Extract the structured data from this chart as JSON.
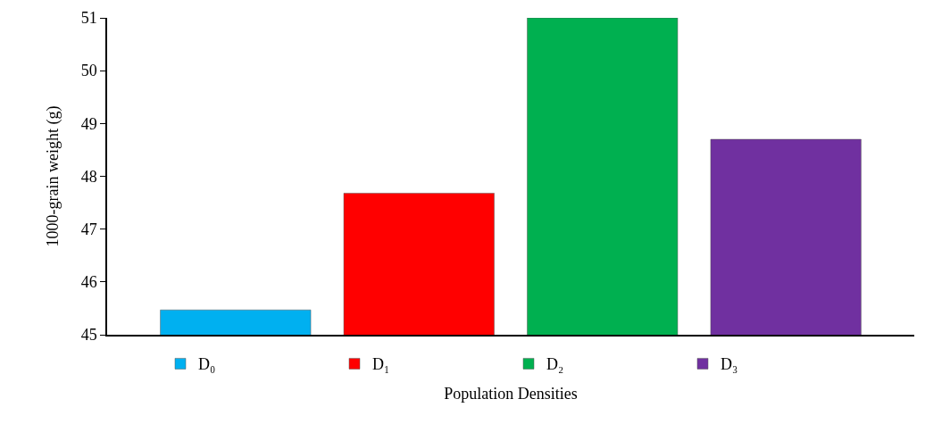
{
  "chart_data": {
    "type": "bar",
    "xlabel": "Population Densities",
    "ylabel": "1000-grain weight (g)",
    "categories": [
      null,
      null,
      null,
      null
    ],
    "series": [
      {
        "name": "D₀",
        "color": "#00b0f0",
        "values": [
          45.47,
          null,
          null,
          null
        ]
      },
      {
        "name": "D₁",
        "color": "#ff0000",
        "values": [
          null,
          47.68,
          null,
          null
        ]
      },
      {
        "name": "D₂",
        "color": "#00b050",
        "values": [
          null,
          null,
          51.0,
          null
        ]
      },
      {
        "name": "D₃",
        "color": "#7030a0",
        "values": [
          null,
          null,
          null,
          48.7
        ]
      }
    ],
    "ylim": [
      45,
      51
    ],
    "yticks": [
      45,
      46,
      47,
      48,
      49,
      50,
      51
    ],
    "grid": false,
    "legend": "bottom"
  }
}
